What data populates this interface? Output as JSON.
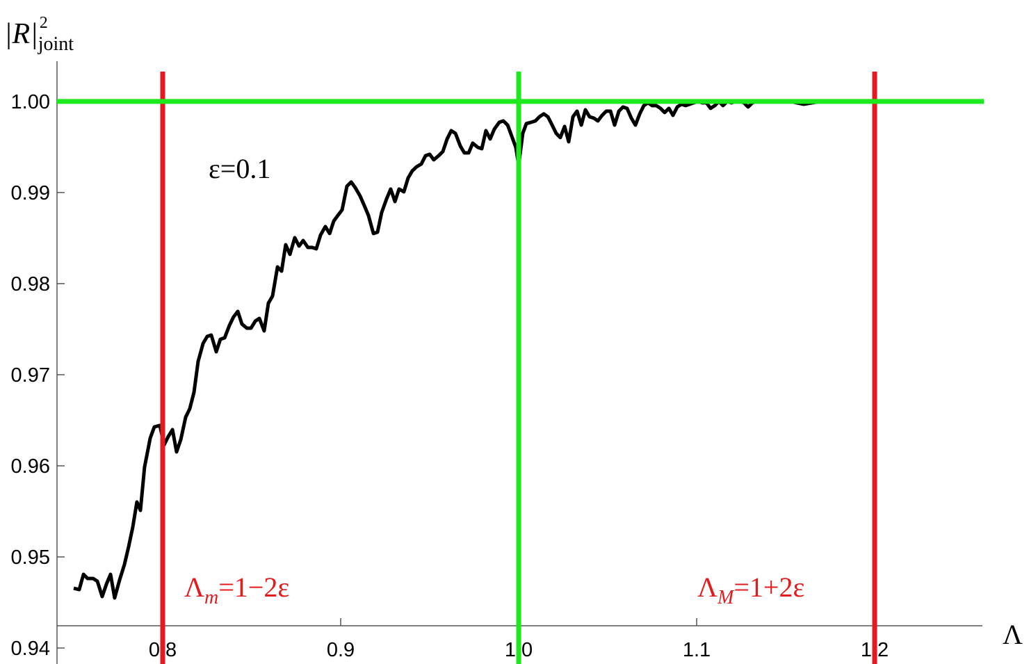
{
  "chart_data": {
    "type": "line",
    "y_label": {
      "base": "|R|",
      "sup": "2",
      "sub": "joint"
    },
    "x_label": "Λ",
    "xlim": [
      0.74,
      1.26
    ],
    "ylim": [
      0.94,
      1.0035
    ],
    "xticks": [
      0.8,
      0.9,
      {
        "value": 1,
        "label": "1.0"
      },
      1.1,
      1.2
    ],
    "yticks": [
      0.94,
      0.95,
      0.96,
      0.97,
      0.98,
      0.99,
      {
        "value": 1,
        "label": "1.00"
      }
    ],
    "reference_lines": [
      {
        "axis": "x",
        "value": 0.8,
        "color": "#e41a1c"
      },
      {
        "axis": "x",
        "value": 1,
        "color": "#1ee81e"
      },
      {
        "axis": "x",
        "value": 1.2,
        "color": "#e41a1c"
      },
      {
        "axis": "y",
        "value": 1,
        "color": "#1ee81e"
      }
    ],
    "annotations": [
      {
        "text": "ε=0.1",
        "color": "#000000"
      },
      {
        "base": "Λ",
        "sub": "m",
        "text": "=1−2ε",
        "color": "#e41a1c"
      },
      {
        "base": "Λ",
        "sub": "M",
        "text": "=1+2ε",
        "color": "#e41a1c"
      }
    ],
    "series": [
      {
        "color": "#000000",
        "x": [
          0.75,
          0.7531,
          0.7555,
          0.7578,
          0.7609,
          0.7633,
          0.766,
          0.7684,
          0.7707,
          0.773,
          0.7758,
          0.7785,
          0.7809,
          0.7832,
          0.7855,
          0.7875,
          0.7898,
          0.793,
          0.7953,
          0.7984,
          0.8008,
          0.8031,
          0.8055,
          0.8078,
          0.8102,
          0.8129,
          0.8152,
          0.8176,
          0.8199,
          0.8227,
          0.825,
          0.8273,
          0.8301,
          0.8324,
          0.8348,
          0.8375,
          0.8398,
          0.8422,
          0.8445,
          0.8473,
          0.8496,
          0.852,
          0.8543,
          0.857,
          0.8594,
          0.8617,
          0.8645,
          0.8668,
          0.8691,
          0.8715,
          0.8742,
          0.8766,
          0.8789,
          0.8816,
          0.884,
          0.8863,
          0.8887,
          0.8914,
          0.8938,
          0.8961,
          0.8984,
          0.9008,
          0.9035,
          0.9059,
          0.9082,
          0.9109,
          0.9133,
          0.9156,
          0.9184,
          0.9207,
          0.923,
          0.9258,
          0.9281,
          0.9305,
          0.9328,
          0.9355,
          0.9379,
          0.9402,
          0.9426,
          0.9453,
          0.9477,
          0.95,
          0.9523,
          0.9551,
          0.9574,
          0.9598,
          0.9621,
          0.9645,
          0.9672,
          0.9695,
          0.9719,
          0.9742,
          0.977,
          0.9793,
          0.9816,
          0.984,
          0.9863,
          0.9891,
          0.9914,
          0.9938,
          0.9961,
          0.9984,
          1.0,
          1.0023,
          1.0043,
          1.007,
          1.0094,
          1.0117,
          1.0141,
          1.0164,
          1.0188,
          1.0211,
          1.0234,
          1.0258,
          1.0281,
          1.0305,
          1.0328,
          1.0352,
          1.0375,
          1.0398,
          1.0422,
          1.0445,
          1.0469,
          1.0492,
          1.0516,
          1.0539,
          1.0563,
          1.0586,
          1.0609,
          1.0633,
          1.0656,
          1.068,
          1.0703,
          1.0727,
          1.075,
          1.0773,
          1.0797,
          1.082,
          1.0844,
          1.0867,
          1.0891,
          1.0914,
          1.0938,
          1.0961,
          1.0984,
          1.1008,
          1.1031,
          1.1055,
          1.1078,
          1.1102,
          1.1125,
          1.1148,
          1.1172,
          1.1195,
          1.1219,
          1.1242,
          1.1266,
          1.1289,
          1.1313,
          1.1336,
          1.143,
          1.1523,
          1.1602,
          1.1695,
          1.1813,
          1.1969,
          1.2164,
          1.232,
          1.2508
        ],
        "values": [
          0.94656,
          0.94641,
          0.94809,
          0.94763,
          0.94763,
          0.94733,
          0.94565,
          0.94702,
          0.94809,
          0.9455,
          0.94748,
          0.94916,
          0.95115,
          0.95328,
          0.95603,
          0.95511,
          0.95985,
          0.96305,
          0.96427,
          0.96443,
          0.96229,
          0.96321,
          0.96397,
          0.96153,
          0.9629,
          0.96534,
          0.96626,
          0.96809,
          0.97145,
          0.97344,
          0.9742,
          0.97435,
          0.97252,
          0.97389,
          0.97405,
          0.97542,
          0.97634,
          0.97695,
          0.97557,
          0.97511,
          0.97511,
          0.97588,
          0.97618,
          0.97481,
          0.97786,
          0.97863,
          0.98183,
          0.98137,
          0.98427,
          0.98321,
          0.98504,
          0.98412,
          0.98473,
          0.98397,
          0.98397,
          0.98382,
          0.98534,
          0.98626,
          0.9855,
          0.98687,
          0.98748,
          0.98809,
          0.99069,
          0.99115,
          0.99053,
          0.98962,
          0.98855,
          0.98748,
          0.9855,
          0.98565,
          0.98779,
          0.98931,
          0.99038,
          0.98901,
          0.99038,
          0.99008,
          0.9916,
          0.99237,
          0.99282,
          0.99313,
          0.99405,
          0.9942,
          0.99359,
          0.99405,
          0.9945,
          0.99588,
          0.99679,
          0.99649,
          0.99511,
          0.99435,
          0.99435,
          0.99542,
          0.99496,
          0.99481,
          0.99679,
          0.99588,
          0.99695,
          0.99771,
          0.99786,
          0.9974,
          0.99618,
          0.99496,
          0.99298,
          0.99649,
          0.99756,
          0.99771,
          0.99786,
          0.99832,
          0.99863,
          0.99832,
          0.9974,
          0.99649,
          0.99603,
          0.99725,
          0.99557,
          0.99832,
          0.99893,
          0.9974,
          0.99908,
          0.99832,
          0.99817,
          0.99786,
          0.99847,
          0.99893,
          0.99893,
          0.9974,
          0.99893,
          0.99939,
          0.99924,
          0.99817,
          0.9974,
          0.99863,
          0.99954,
          0.99985,
          0.99954,
          0.99954,
          0.99924,
          0.99878,
          0.99924,
          0.99847,
          0.99939,
          0.99969,
          0.99954,
          0.99969,
          0.99985,
          1.0,
          0.99985,
          0.99985,
          0.99924,
          0.99954,
          1.0,
          0.99954,
          1.0,
          0.99985,
          1.0,
          1.0,
          0.99985,
          0.99939,
          0.99985,
          1.0,
          0.99995,
          1.0,
          0.99969,
          1.0,
          1.0,
          0.99998,
          1.0,
          0.99997,
          1.0
        ]
      }
    ]
  }
}
